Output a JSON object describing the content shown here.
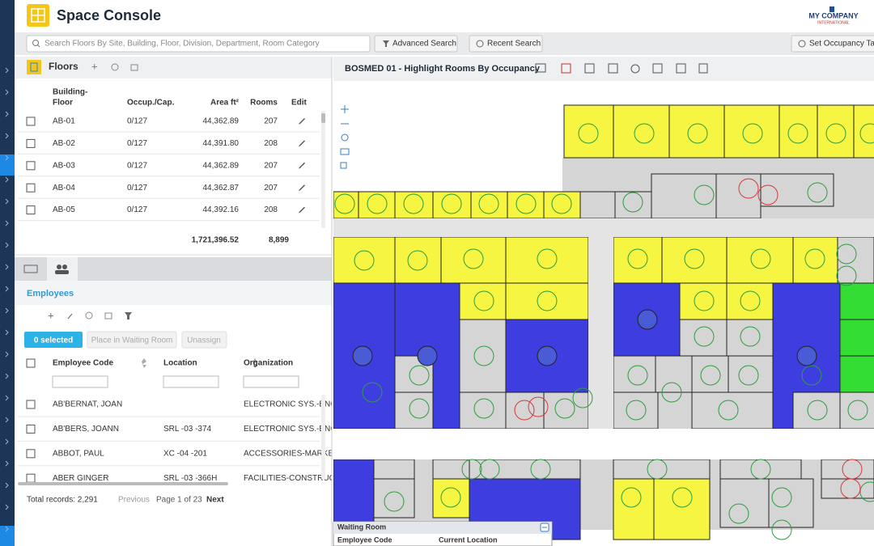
{
  "header": {
    "title": "Space Console",
    "company": "MY COMPANY",
    "company_sub": "INTERNATIONAL"
  },
  "search": {
    "placeholder": "Search Floors By Site, Building, Floor, Division, Department, Room Category",
    "advanced": "Advanced Search",
    "recent": "Recent Search",
    "occupancy": "Set Occupancy Tar"
  },
  "floors": {
    "title": "Floors",
    "building_floor_header": [
      "Building-",
      "Floor"
    ],
    "columns": [
      "Occup./Cap.",
      "Area ft²",
      "Rooms",
      "Edit"
    ],
    "rows": [
      [
        "AB-01",
        "0/127",
        "44,362.89",
        "207"
      ],
      [
        "AB-02",
        "0/127",
        "44,391.80",
        "208"
      ],
      [
        "AB-03",
        "0/127",
        "44,362.89",
        "207"
      ],
      [
        "AB-04",
        "0/127",
        "44,362.87",
        "207"
      ],
      [
        "AB-05",
        "0/127",
        "44,392.16",
        "208"
      ]
    ],
    "totals": [
      "1,721,396.52",
      "8,899"
    ]
  },
  "employees": {
    "title": "Employees",
    "selected": "0 selected",
    "waiting": "Place in Waiting Room",
    "unassign": "Unassign",
    "columns": [
      "Employee Code",
      "Location",
      "Organization"
    ],
    "rows": [
      [
        "AB'BERNAT, JOAN",
        null,
        "ELECTRONIC SYS.-ENG"
      ],
      [
        "AB'BERS, JOANN",
        "SRL -03 -374",
        "ELECTRONIC SYS.-ENG"
      ],
      [
        "ABBOT, PAUL",
        "XC -04 -201",
        "ACCESSORIES-MARKET"
      ],
      [
        "ABER GINGER",
        "SRL -03 -366H",
        "FACILITIES-CONSTRUC"
      ]
    ],
    "total": "Total records: 2,291",
    "previous": "Previous",
    "page": "Page 1 of 23",
    "next": "Next"
  },
  "plan": {
    "title": "BOSMED 01 - Highlight Rooms By Occupancy"
  },
  "waiting_room": {
    "title": "Waiting Room",
    "columns": [
      "Employee Code",
      "Current Location"
    ]
  }
}
